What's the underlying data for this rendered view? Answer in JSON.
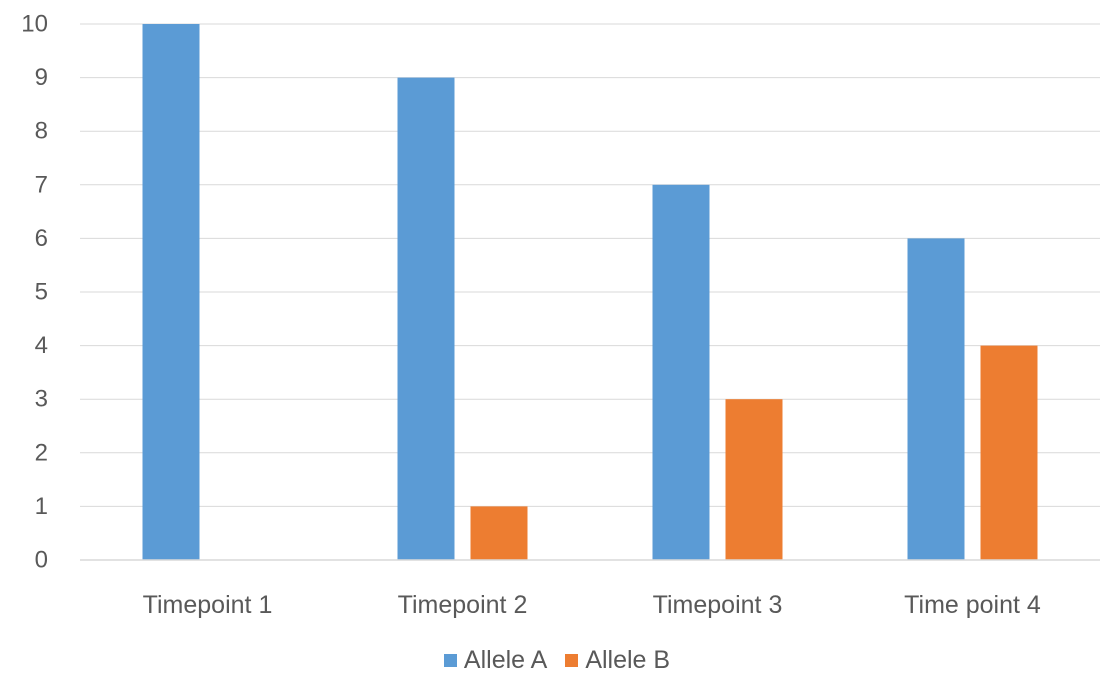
{
  "chart_data": {
    "type": "bar",
    "categories": [
      "Timepoint 1",
      "Timepoint 2",
      "Timepoint 3",
      "Time point 4"
    ],
    "series": [
      {
        "name": "Allele A",
        "values": [
          10,
          9,
          7,
          6
        ],
        "color": "#5B9BD5"
      },
      {
        "name": "Allele B",
        "values": [
          0,
          1,
          3,
          4
        ],
        "color": "#ED7D31"
      }
    ],
    "ylim": [
      0,
      10
    ],
    "yticks": [
      0,
      1,
      2,
      3,
      4,
      5,
      6,
      7,
      8,
      9,
      10
    ],
    "grid": true,
    "legend_position": "bottom"
  }
}
